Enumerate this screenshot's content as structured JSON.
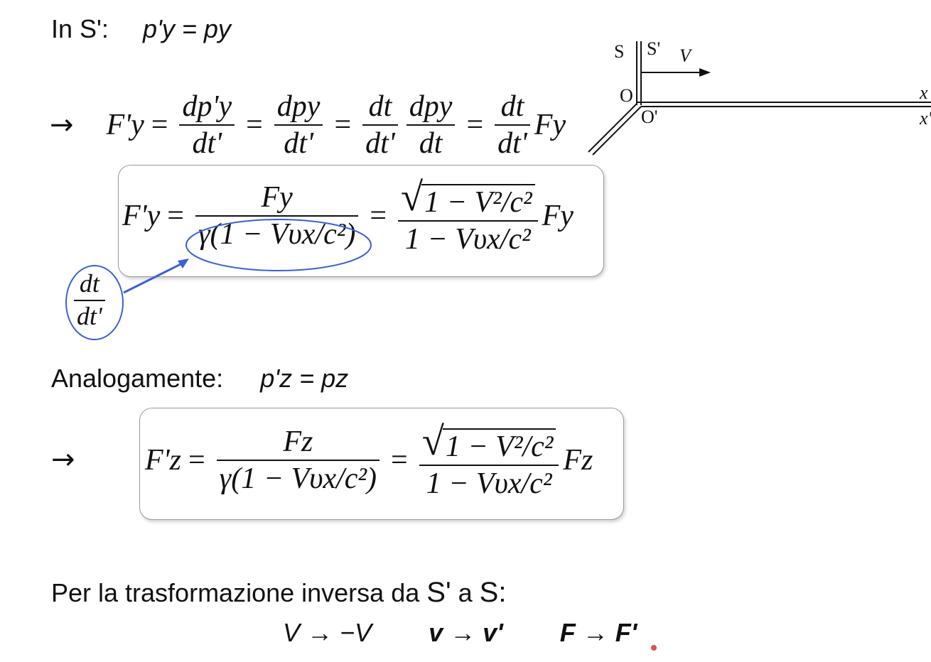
{
  "header": {
    "label": "In S':",
    "eq": "p'y = py"
  },
  "eq1": {
    "arrow": "→",
    "lhs": "F'y",
    "t1_num": "dp'y",
    "t1_den": "dt'",
    "t2_num": "dpy",
    "t2_den": "dt'",
    "t3a_num": "dt",
    "t3a_den": "dt'",
    "t3b_num": "dpy",
    "t3b_den": "dt",
    "t4_num": "dt",
    "t4_den": "dt'",
    "t4_factor": "Fy"
  },
  "eq2": {
    "lhs": "F'y",
    "f1_num": "Fy",
    "f1_den": "γ(1 − Vυx/c²)",
    "f2_num": "1 − V²/c²",
    "f2_den": "1 − Vυx/c²",
    "factor": "Fy"
  },
  "annotation": {
    "num": "dt",
    "den": "dt'",
    "color": "#3a5fd9"
  },
  "analog": {
    "label": "Analogamente:",
    "eq": "p'z = pz"
  },
  "eq3": {
    "arrow": "→",
    "lhs": "F'z",
    "f1_num": "Fz",
    "f1_den": "γ(1 − Vυx/c²)",
    "f2_num": "1 − V²/c²",
    "f2_den": "1 − Vυx/c²",
    "factor": "Fz"
  },
  "inverse": {
    "label_a": "Per la trasformazione inversa da",
    "s_prime": "S'",
    "label_b": "a",
    "s": "S:",
    "rules": [
      "V → −V",
      "v → v'",
      "F → F'"
    ]
  },
  "diagram": {
    "s": "S",
    "s_prime": "S'",
    "v": "V",
    "o": "O",
    "o_prime": "O'",
    "x": "x",
    "x_prime": "x'"
  }
}
